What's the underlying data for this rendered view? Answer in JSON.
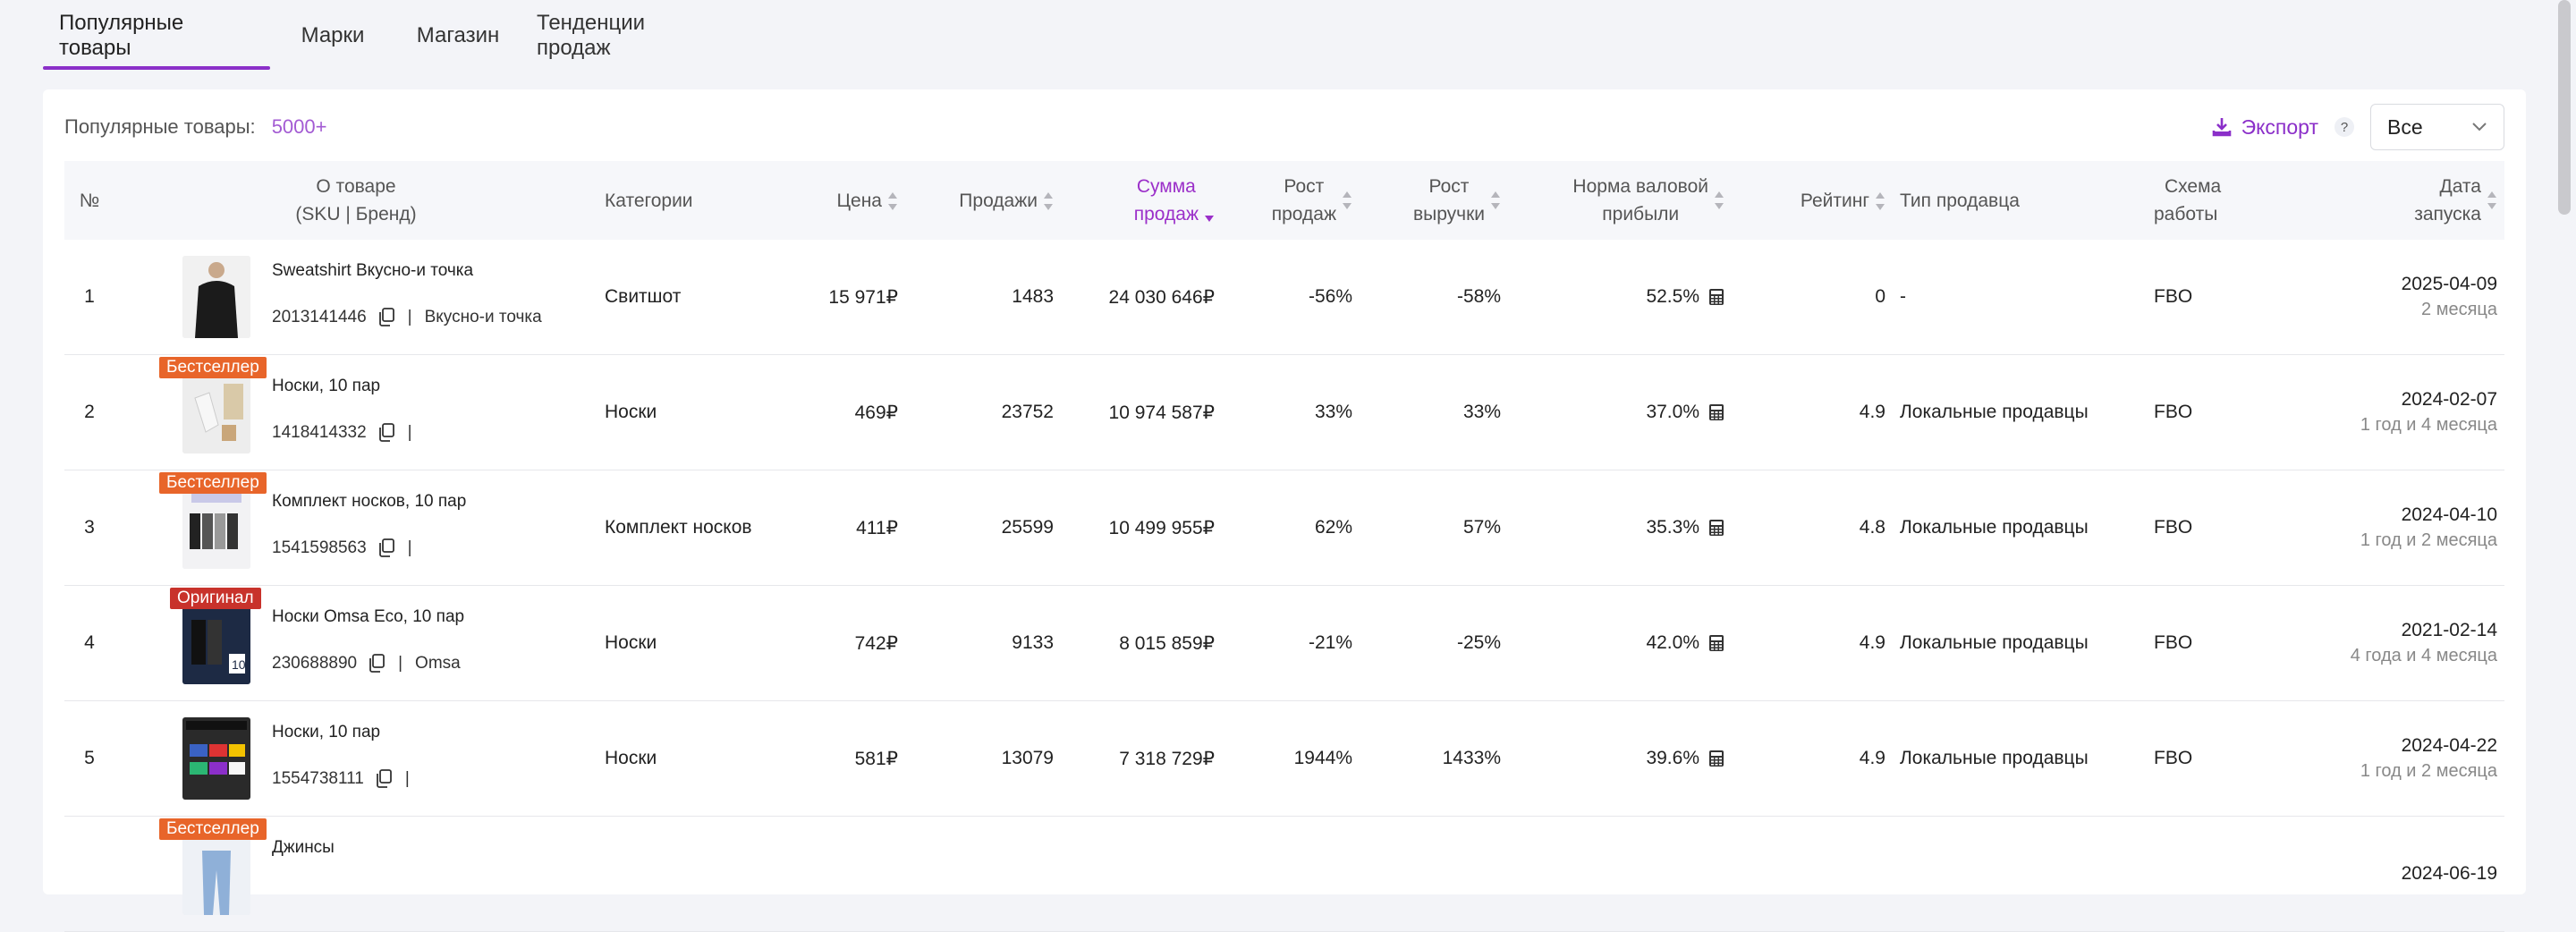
{
  "tabs": [
    {
      "label": "Популярные товары"
    },
    {
      "label": "Марки"
    },
    {
      "label": "Магазин"
    },
    {
      "label": "Тенденции продаж"
    }
  ],
  "panel": {
    "label": "Популярные товары:",
    "count": "5000+",
    "export_label": "Экспорт",
    "help": "?",
    "filter_value": "Все"
  },
  "columns": {
    "idx": "№",
    "product_1": "О товаре",
    "product_2": "(SKU | Бренд)",
    "category": "Категории",
    "price": "Цена",
    "sales": "Продажи",
    "revenue_1": "Сумма",
    "revenue_2": "продаж",
    "growth_sales_1": "Рост",
    "growth_sales_2": "продаж",
    "growth_rev_1": "Рост",
    "growth_rev_2": "выручки",
    "margin_1": "Норма валовой",
    "margin_2": "прибыли",
    "rating": "Рейтинг",
    "seller": "Тип продавца",
    "scheme_1": "Схема",
    "scheme_2": "работы",
    "date_1": "Дата",
    "date_2": "запуска"
  },
  "rows": [
    {
      "idx": "1",
      "badge": "",
      "name": "Sweatshirt Вкусно-и точка",
      "sku": "2013141446",
      "sep": "|",
      "brand": "Вкусно-и точка",
      "category": "Свитшот",
      "price": "15 971₽",
      "sales": "1483",
      "revenue": "24 030 646₽",
      "growth_sales": "-56%",
      "growth_rev": "-58%",
      "margin": "52.5%",
      "rating": "0",
      "seller": "-",
      "scheme": "FBO",
      "date": "2025-04-09",
      "age": "2 месяца"
    },
    {
      "idx": "2",
      "badge": "Бестселлер",
      "name": "Носки, 10 пар",
      "sku": "1418414332",
      "sep": "|",
      "brand": "",
      "category": "Носки",
      "price": "469₽",
      "sales": "23752",
      "revenue": "10 974 587₽",
      "growth_sales": "33%",
      "growth_rev": "33%",
      "margin": "37.0%",
      "rating": "4.9",
      "seller": "Локальные продавцы",
      "scheme": "FBO",
      "date": "2024-02-07",
      "age": "1 год и 4 месяца"
    },
    {
      "idx": "3",
      "badge": "Бестселлер",
      "name": "Комплект носков, 10 пар",
      "sku": "1541598563",
      "sep": "|",
      "brand": "",
      "category": "Комплект носков",
      "price": "411₽",
      "sales": "25599",
      "revenue": "10 499 955₽",
      "growth_sales": "62%",
      "growth_rev": "57%",
      "margin": "35.3%",
      "rating": "4.8",
      "seller": "Локальные продавцы",
      "scheme": "FBO",
      "date": "2024-04-10",
      "age": "1 год и 2 месяца"
    },
    {
      "idx": "4",
      "badge": "Оригинал",
      "name": "Носки Omsa Eco, 10 пар",
      "sku": "230688890",
      "sep": "|",
      "brand": "Omsa",
      "category": "Носки",
      "price": "742₽",
      "sales": "9133",
      "revenue": "8 015 859₽",
      "growth_sales": "-21%",
      "growth_rev": "-25%",
      "margin": "42.0%",
      "rating": "4.9",
      "seller": "Локальные продавцы",
      "scheme": "FBO",
      "date": "2021-02-14",
      "age": "4 года и 4 месяца"
    },
    {
      "idx": "5",
      "badge": "",
      "name": "Носки, 10 пар",
      "sku": "1554738111",
      "sep": "|",
      "brand": "",
      "category": "Носки",
      "price": "581₽",
      "sales": "13079",
      "revenue": "7 318 729₽",
      "growth_sales": "1944%",
      "growth_rev": "1433%",
      "margin": "39.6%",
      "rating": "4.9",
      "seller": "Локальные продавцы",
      "scheme": "FBO",
      "date": "2024-04-22",
      "age": "1 год и 2 месяца"
    },
    {
      "idx": "",
      "badge": "Бестселлер",
      "name": "Джинсы",
      "sku": "",
      "sep": "",
      "brand": "",
      "category": "",
      "price": "",
      "sales": "",
      "revenue": "",
      "growth_sales": "",
      "growth_rev": "",
      "margin": "",
      "rating": "",
      "seller": "",
      "scheme": "",
      "date": "2024-06-19",
      "age": ""
    }
  ],
  "colors": {
    "accent": "#8b2fc9",
    "badge_bestseller": "#e8652a",
    "badge_original": "#c8322b"
  }
}
